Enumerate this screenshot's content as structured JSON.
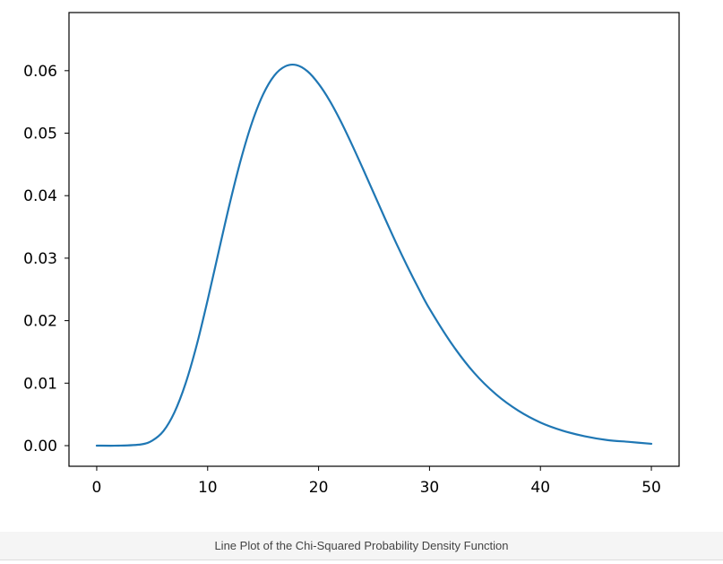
{
  "caption": "Line Plot of the Chi-Squared Probability Density Function",
  "colors": {
    "line": "#1f77b4",
    "axes": "#000000",
    "caption_bg": "#f5f5f5"
  },
  "chart_data": {
    "type": "line",
    "title": "",
    "xlabel": "",
    "ylabel": "",
    "xlim": [
      -2.5,
      52.5
    ],
    "ylim": [
      -0.0033,
      0.0693
    ],
    "grid": false,
    "xticks": [
      0,
      10,
      20,
      30,
      40,
      50
    ],
    "xtick_labels": [
      "0",
      "10",
      "20",
      "30",
      "40",
      "50"
    ],
    "yticks": [
      0.0,
      0.01,
      0.02,
      0.03,
      0.04,
      0.05,
      0.06
    ],
    "ytick_labels": [
      "0.00",
      "0.01",
      "0.02",
      "0.03",
      "0.04",
      "0.05",
      "0.06"
    ],
    "series": [
      {
        "x": [
          0,
          2,
          4,
          5,
          6,
          7,
          8,
          9,
          10,
          11,
          12,
          13,
          14,
          15,
          16,
          17,
          18,
          19,
          20,
          21,
          22,
          23,
          24,
          25,
          26,
          27,
          28,
          29,
          30,
          32,
          34,
          36,
          38,
          40,
          42,
          44,
          46,
          48,
          50
        ],
        "y": [
          0.0,
          0.0,
          0.0002,
          0.0008,
          0.0023,
          0.0053,
          0.0099,
          0.016,
          0.0233,
          0.0311,
          0.0388,
          0.0458,
          0.0517,
          0.0562,
          0.0592,
          0.0607,
          0.0609,
          0.0599,
          0.0579,
          0.0552,
          0.0519,
          0.0482,
          0.0443,
          0.0403,
          0.0363,
          0.0324,
          0.0287,
          0.0252,
          0.0219,
          0.0163,
          0.0117,
          0.0082,
          0.0056,
          0.0037,
          0.0024,
          0.0015,
          0.0009,
          0.0006,
          0.0003
        ]
      }
    ]
  }
}
